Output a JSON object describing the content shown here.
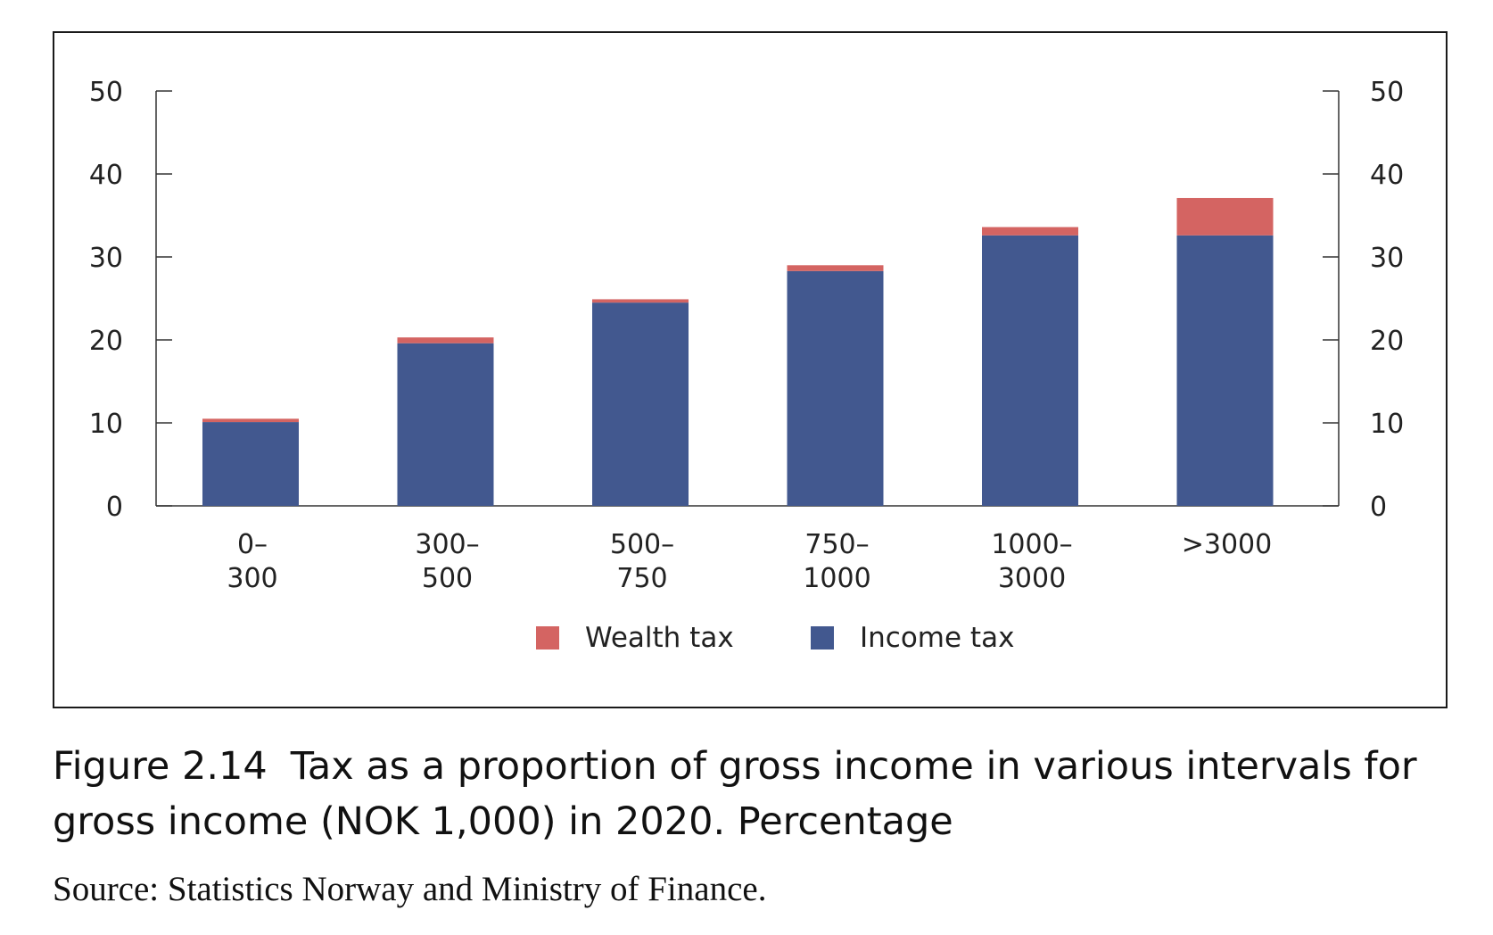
{
  "chart_data": {
    "type": "bar",
    "stacked": true,
    "categories": [
      [
        "0–",
        "300"
      ],
      [
        "300–",
        "500"
      ],
      [
        "500–",
        "750"
      ],
      [
        "750–",
        "1000"
      ],
      [
        "1000–",
        "3000"
      ],
      [
        ">3000"
      ]
    ],
    "series": [
      {
        "name": "Income tax",
        "color": "#42588f",
        "values": [
          10.1,
          19.6,
          24.5,
          28.3,
          32.6,
          32.6
        ]
      },
      {
        "name": "Wealth tax",
        "color": "#d46462",
        "values": [
          0.4,
          0.7,
          0.4,
          0.7,
          1.0,
          4.5
        ]
      }
    ],
    "legend_order": [
      "Wealth tax",
      "Income tax"
    ],
    "legend_position": "bottom-center",
    "ylim": [
      0,
      50
    ],
    "yticks": [
      0,
      10,
      20,
      30,
      40,
      50
    ],
    "y_axis_mirrored_right": true,
    "grid": false
  },
  "caption": {
    "number": "Figure 2.14",
    "text": "Tax as a proportion of gross income in various intervals for gross income (NOK 1,000) in 2020. Percentage",
    "source": "Source: Statistics Norway and Ministry of Finance."
  }
}
